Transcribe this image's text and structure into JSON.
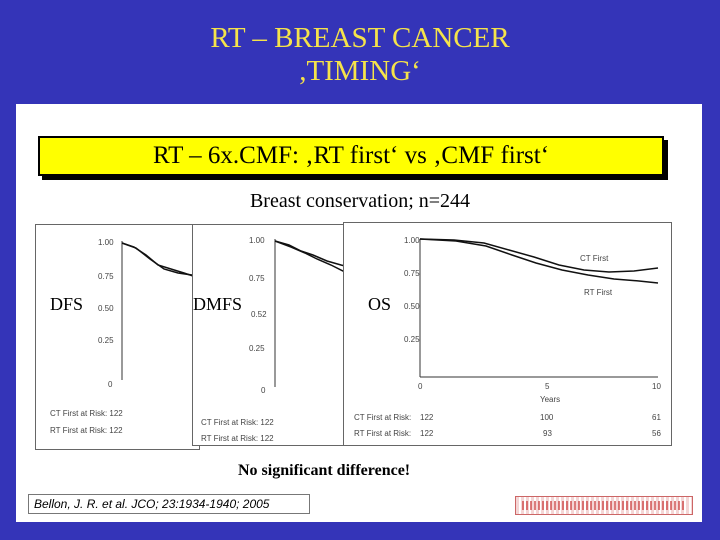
{
  "slide": {
    "title_line1": "RT – BREAST CANCER",
    "title_line2": ",TIMING‘",
    "banner": "RT – 6x.CMF: ‚RT first‘ vs ‚CMF first‘",
    "subtitle": "Breast conservation; n=244",
    "conclusion": "No significant difference!",
    "citation": "Bellon, J. R. et al. JCO; 23:1934-1940; 2005"
  },
  "panels": {
    "dfs": {
      "label": "DFS",
      "y_ticks": [
        "1.00",
        "0.75",
        "0.50",
        "0.25",
        "0"
      ],
      "risk_ct": "CT First at Risk: 122",
      "risk_rt": "RT First at Risk: 122"
    },
    "dmfs": {
      "label": "DMFS",
      "y_ticks": [
        "1.00",
        "0.75",
        "0.52",
        "0.25",
        "0"
      ],
      "risk_ct": "CT First at Risk: 122",
      "risk_rt": "RT First at Risk: 122"
    },
    "os": {
      "label": "OS",
      "y_ticks": [
        "1.00",
        "0.75",
        "0.50",
        "0.25"
      ],
      "x_ticks": [
        "0",
        "5",
        "10"
      ],
      "x_label": "Years",
      "legend_ct": "CT First",
      "legend_rt": "RT First",
      "risk_ct_label": "CT First at Risk:",
      "risk_rt_label": "RT First at Risk:",
      "risk_ct": [
        "122",
        "100",
        "61"
      ],
      "risk_rt": [
        "122",
        "93",
        "56"
      ]
    }
  },
  "colors": {
    "frame": "#3434b8",
    "title": "#f5e34a",
    "banner": "#ffff00"
  }
}
